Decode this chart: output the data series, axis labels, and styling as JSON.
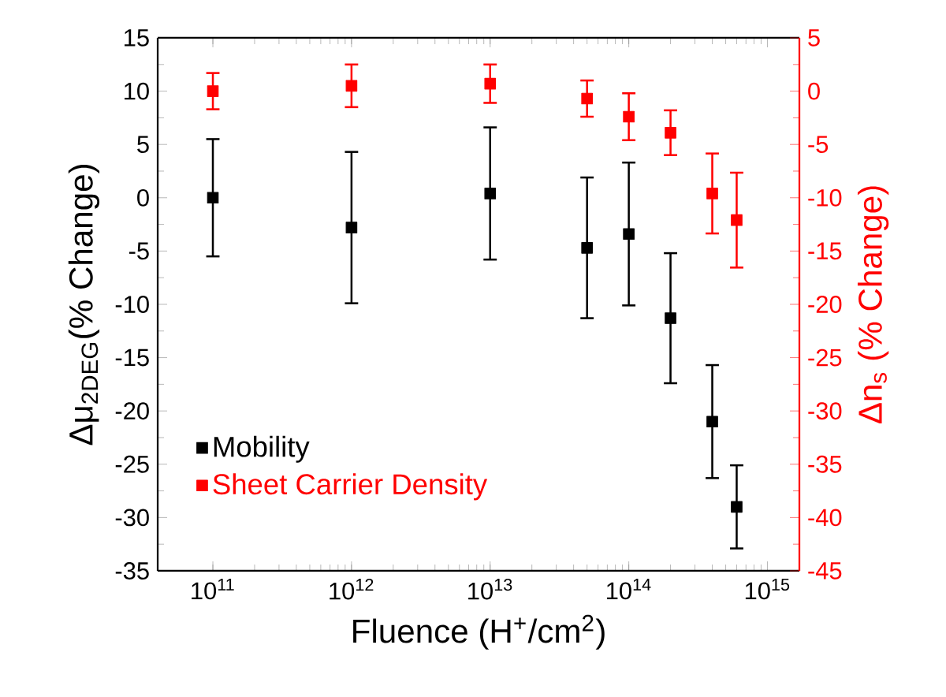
{
  "chart_data": {
    "type": "scatter",
    "xlabel": "Fluence (H$^{+}$/cm$^{2}$)",
    "ylabel": "Δμ$_{2DEG}$(% Change)",
    "y2label": "Δn$_{s}$ (% Change)",
    "log": "x",
    "x": [
      100000000000.0,
      1000000000000.0,
      10000000000000.0,
      50000000000000.0,
      100000000000000.0,
      200000000000000.0,
      400000000000000.0,
      600000000000000.0
    ],
    "xlim": [
      40000000000.0,
      1700000000000000.0
    ],
    "xticks": [
      {
        "value": 100000000000.0,
        "label": "10$^{11}$"
      },
      {
        "value": 1000000000000.0,
        "label": "10$^{12}$"
      },
      {
        "value": 10000000000000.0,
        "label": "10$^{13}$"
      },
      {
        "value": 100000000000000.0,
        "label": "10$^{14}$"
      },
      {
        "value": 1000000000000000.0,
        "label": "10$^{15}$"
      }
    ],
    "ylim": [
      -35,
      15
    ],
    "yticks": [
      -35,
      -30,
      -25,
      -20,
      -15,
      -10,
      -5,
      0,
      5,
      10,
      15
    ],
    "y2lim": [
      -45,
      5
    ],
    "y2ticks": [
      -45,
      -40,
      -35,
      -30,
      -25,
      -20,
      -15,
      -10,
      -5,
      0,
      5
    ],
    "marker": "square",
    "legend": "bottom left",
    "grid": false,
    "series": [
      {
        "name": "Mobility",
        "color": "#000000",
        "values": [
          0,
          -2.8,
          0.4,
          -4.7,
          -3.4,
          -11.3,
          -21.0,
          -29.0
        ],
        "errors": [
          5.5,
          7.1,
          6.2,
          6.6,
          6.7,
          6.1,
          5.3,
          3.9
        ]
      },
      {
        "name": "Sheet Carrier Density",
        "color": "#ff0000",
        "axis": "y2",
        "values": [
          0,
          0.5,
          0.7,
          -0.7,
          -2.4,
          -3.9,
          -9.6,
          -12.1
        ],
        "errors": [
          1.7,
          2.0,
          1.8,
          1.7,
          2.2,
          2.1,
          3.75,
          4.45
        ]
      }
    ]
  }
}
